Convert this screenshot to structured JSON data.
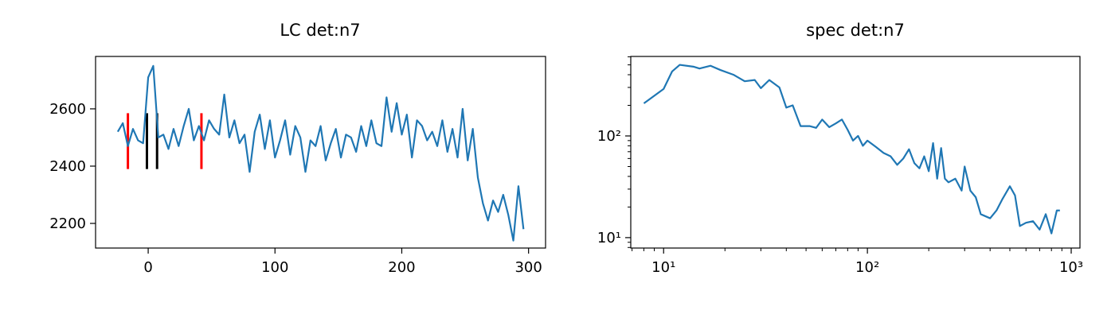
{
  "chart_data": [
    {
      "type": "line",
      "title": "LC det:n7",
      "x": [
        -24,
        -20,
        -16,
        -12,
        -8,
        -4,
        0,
        4,
        8,
        12,
        16,
        20,
        24,
        28,
        32,
        36,
        40,
        44,
        48,
        52,
        56,
        60,
        64,
        68,
        72,
        76,
        80,
        84,
        88,
        92,
        96,
        100,
        104,
        108,
        112,
        116,
        120,
        124,
        128,
        132,
        136,
        140,
        144,
        148,
        152,
        156,
        160,
        164,
        168,
        172,
        176,
        180,
        184,
        188,
        192,
        196,
        200,
        204,
        208,
        212,
        216,
        220,
        224,
        228,
        232,
        236,
        240,
        244,
        248,
        252,
        256,
        260,
        264,
        268,
        272,
        276,
        280,
        284,
        288,
        292,
        296
      ],
      "series": [
        {
          "color": "#1f77b4",
          "values": [
            2520,
            2550,
            2470,
            2530,
            2490,
            2480,
            2710,
            2750,
            2500,
            2510,
            2460,
            2530,
            2470,
            2540,
            2600,
            2490,
            2540,
            2490,
            2560,
            2530,
            2510,
            2650,
            2500,
            2560,
            2480,
            2510,
            2380,
            2520,
            2580,
            2460,
            2560,
            2430,
            2490,
            2560,
            2440,
            2540,
            2500,
            2380,
            2490,
            2470,
            2540,
            2420,
            2480,
            2530,
            2430,
            2510,
            2500,
            2450,
            2540,
            2470,
            2560,
            2480,
            2470,
            2640,
            2520,
            2620,
            2510,
            2580,
            2430,
            2560,
            2540,
            2490,
            2520,
            2470,
            2560,
            2450,
            2530,
            2430,
            2600,
            2420,
            2530,
            2360,
            2270,
            2210,
            2280,
            2240,
            2300,
            2230,
            2140,
            2330,
            2180
          ]
        }
      ],
      "vlines": [
        {
          "x": -16,
          "ymin": 2390,
          "ymax": 2585,
          "color": "#ff0000"
        },
        {
          "x": -1,
          "ymin": 2390,
          "ymax": 2585,
          "color": "#000000"
        },
        {
          "x": 7,
          "ymin": 2390,
          "ymax": 2585,
          "color": "#000000"
        },
        {
          "x": 42,
          "ymin": 2390,
          "ymax": 2585,
          "color": "#ff0000"
        }
      ],
      "xlim": [
        -41.5,
        313.4
      ],
      "ylim": [
        2114,
        2783
      ],
      "xticks": [
        0,
        100,
        200,
        300
      ],
      "yticks": [
        2200,
        2400,
        2600
      ]
    },
    {
      "type": "line",
      "title": "spec det:n7",
      "xscale": "log",
      "yscale": "log",
      "x": [
        8,
        10,
        11,
        12,
        14,
        15,
        17,
        19,
        22,
        25,
        28,
        30,
        33,
        37,
        40,
        43,
        47,
        52,
        56,
        60,
        65,
        70,
        75,
        80,
        85,
        90,
        95,
        100,
        110,
        120,
        130,
        140,
        150,
        160,
        170,
        180,
        190,
        200,
        210,
        220,
        230,
        240,
        250,
        270,
        290,
        300,
        320,
        340,
        360,
        400,
        430,
        460,
        500,
        530,
        560,
        600,
        650,
        700,
        750,
        800,
        850,
        880
      ],
      "series": [
        {
          "color": "#1f77b4",
          "values": [
            209,
            290,
            430,
            500,
            480,
            460,
            490,
            445,
            400,
            345,
            355,
            295,
            355,
            300,
            190,
            200,
            125,
            125,
            120,
            145,
            122,
            133,
            145,
            115,
            90,
            100,
            80,
            90,
            78,
            68,
            63,
            52,
            60,
            74,
            54,
            48,
            63,
            45,
            85,
            38,
            76,
            38,
            35,
            38,
            29,
            50,
            29,
            25,
            17,
            15.5,
            18.5,
            24,
            32,
            26,
            13,
            14,
            14.5,
            12,
            17,
            11,
            18.5,
            18.5
          ]
        }
      ],
      "xlim": [
        6.9,
        1104
      ],
      "ylim": [
        7.9,
        605
      ],
      "xticks": [
        {
          "value": 10,
          "label": "10¹"
        },
        {
          "value": 100,
          "label": "10²"
        },
        {
          "value": 1000,
          "label": "10³"
        }
      ],
      "yticks": [
        {
          "value": 10,
          "label": "10¹"
        },
        {
          "value": 100,
          "label": "10²"
        }
      ]
    }
  ]
}
